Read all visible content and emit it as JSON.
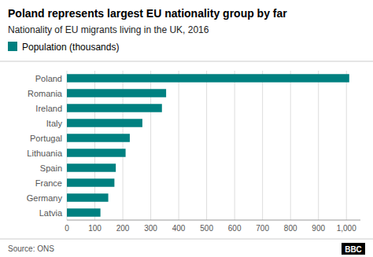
{
  "chart_data": {
    "type": "bar",
    "orientation": "horizontal",
    "title": "Poland represents largest EU nationality group by far",
    "subtitle": "Nationality of EU migrants living in the UK, 2016",
    "source": "Source: ONS",
    "annotations": [
      "BBC"
    ],
    "categories": [
      "Latvia",
      "Germany",
      "France",
      "Spain",
      "Lithuania",
      "Portugal",
      "Italy",
      "Ireland",
      "Romania",
      "Poland"
    ],
    "series": [
      {
        "name": "Population (thousands)",
        "color": "#008080",
        "values": [
          120,
          148,
          170,
          175,
          210,
          225,
          270,
          340,
          355,
          1010
        ]
      }
    ],
    "xlim": [
      0,
      1050
    ],
    "xticks": [
      0,
      100,
      200,
      300,
      400,
      500,
      600,
      700,
      800,
      900,
      {
        "value": 1000,
        "label": "1,000"
      }
    ],
    "grid": true,
    "legend": "top-left"
  }
}
